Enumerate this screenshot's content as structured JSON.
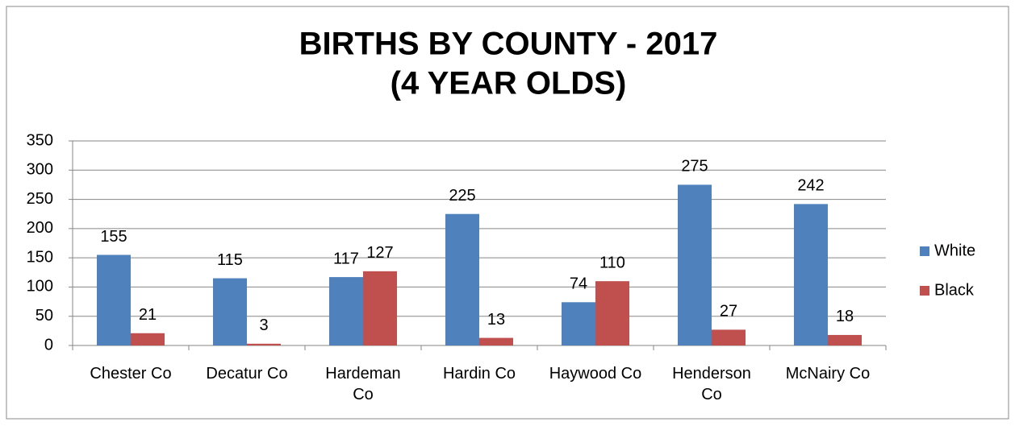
{
  "chart_data": {
    "type": "bar",
    "title": "BIRTHS BY COUNTY - 2017",
    "subtitle": "(4 YEAR OLDS)",
    "categories": [
      "Chester  Co",
      "Decatur Co",
      "Hardeman Co",
      "Hardin Co",
      "Haywood Co",
      "Henderson Co",
      "McNairy Co"
    ],
    "series": [
      {
        "name": "White",
        "color": "#4f81bd",
        "values": [
          155,
          115,
          117,
          225,
          74,
          275,
          242
        ]
      },
      {
        "name": "Black",
        "color": "#c0504d",
        "values": [
          21,
          3,
          127,
          13,
          110,
          27,
          18
        ]
      }
    ],
    "ylim": [
      0,
      350
    ],
    "yticks": [
      0,
      50,
      100,
      150,
      200,
      250,
      300,
      350
    ],
    "grid": true,
    "legend": "right"
  }
}
